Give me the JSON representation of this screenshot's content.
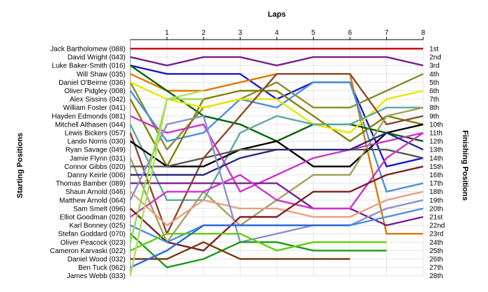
{
  "chart_data": {
    "type": "line",
    "title": "Laps",
    "y_left_label": "Starting Positions",
    "y_right_label": "Finishing Positions",
    "grid": true,
    "x_ticks": [
      "1",
      "2",
      "3",
      "4",
      "5",
      "6",
      "7",
      "8"
    ],
    "driver_labels": [
      "Jack Bartholomew (088)",
      "David Wright (043)",
      "Luke Baker-Smith (016)",
      "Will Shaw (035)",
      "Daniel O'Beirne (036)",
      "Oliver Pidgley (008)",
      "Alex Sissins (042)",
      "William Foster (041)",
      "Hayden Edmonds (081)",
      "Mitchell Althasen (044)",
      "Lewis Bickers (057)",
      "Lando Norris (030)",
      "Ryan Savage (049)",
      "Jamie Flynn (031)",
      "Connor Gibbs (020)",
      "Danny Keirle (006)",
      "Thomas Bamber (089)",
      "Shaun Arnold (046)",
      "Matthew Arnold (064)",
      "Sam Smelt (096)",
      "Elliot Goodman (028)",
      "Karl Bonney (025)",
      "Stefan Goddard (070)",
      "Oliver Peacock (023)",
      "Cameron Karvaski (022)",
      "Daniel Wood (032)",
      "Ben Tuck (062)",
      "James Webb (033)"
    ],
    "finish_labels": [
      "1st",
      "2nd",
      "3rd",
      "4th",
      "5th",
      "6th",
      "7th",
      "8th",
      "9th",
      "10th",
      "11th",
      "12th",
      "13th",
      "14th",
      "15th",
      "16th",
      "17th",
      "18th",
      "19th",
      "20th",
      "21st",
      "22nd",
      "23rd",
      "24th",
      "25th",
      "26th",
      "27th",
      "28th"
    ],
    "series": [
      {
        "color": "#cc0000",
        "positions": [
          1,
          1,
          1,
          1,
          1,
          1,
          1,
          1,
          1
        ]
      },
      {
        "color": "#7a1f8c",
        "positions": [
          2,
          3,
          2,
          2,
          3,
          2,
          2,
          2,
          3
        ]
      },
      {
        "color": "#1a1acc",
        "positions": [
          3,
          4,
          4,
          4,
          7,
          5,
          5,
          15,
          14
        ]
      },
      {
        "color": "#e07800",
        "positions": [
          4,
          6,
          6,
          5,
          4,
          4,
          4,
          23,
          23
        ]
      },
      {
        "color": "#8a8a2a",
        "positions": [
          5,
          13,
          8,
          7,
          5,
          8,
          8,
          6,
          4
        ]
      },
      {
        "color": "#4a90d9",
        "positions": [
          6,
          12,
          11,
          7,
          8,
          5,
          5,
          18,
          17
        ]
      },
      {
        "color": "#006400",
        "positions": [
          3,
          6,
          9,
          10,
          12,
          10,
          10,
          11,
          12
        ]
      },
      {
        "color": "#808000",
        "positions": [
          7,
          15,
          7,
          6,
          6,
          9,
          12,
          9,
          10
        ]
      },
      {
        "color": "#e8e800",
        "positions": [
          5,
          7,
          8,
          7,
          7,
          10,
          11,
          7,
          6
        ]
      },
      {
        "color": "#5fa8a0",
        "positions": [
          10,
          19,
          19,
          11,
          9,
          10,
          10,
          8,
          8
        ]
      },
      {
        "color": "#8a4a2a",
        "positions": [
          11,
          23,
          14,
          9,
          4,
          4,
          4,
          10,
          9
        ]
      },
      {
        "color": "#000000",
        "positions": [
          12,
          15,
          15,
          13,
          12,
          15,
          15,
          11,
          10
        ]
      },
      {
        "color": "#cc33cc",
        "positions": [
          9,
          11,
          10,
          18,
          16,
          14,
          13,
          12,
          11
        ]
      },
      {
        "color": "#a0a060",
        "positions": [
          14,
          24,
          18,
          22,
          19,
          16,
          16,
          9,
          8
        ]
      },
      {
        "color": "#555555",
        "positions": [
          15,
          15,
          14,
          13,
          13,
          13,
          13,
          13,
          14
        ]
      },
      {
        "color": "#2b2b80",
        "positions": [
          16,
          16,
          16,
          14,
          13,
          13,
          13,
          11,
          13
        ]
      },
      {
        "color": "#7a1f8c",
        "positions": [
          17,
          17,
          17,
          17,
          17,
          20,
          20,
          22,
          21
        ]
      },
      {
        "color": "#e8a080",
        "positions": [
          18,
          22,
          19,
          20,
          20,
          21,
          21,
          19,
          18
        ]
      },
      {
        "color": "#cc33cc",
        "positions": [
          21,
          18,
          18,
          16,
          19,
          20,
          20,
          14,
          11
        ]
      },
      {
        "color": "#7a1f1f",
        "positions": [
          20,
          24,
          25,
          21,
          21,
          18,
          18,
          16,
          15
        ]
      },
      {
        "color": "#8f8fcc",
        "positions": [
          19,
          10,
          9,
          24,
          23,
          22,
          22,
          20,
          19
        ]
      },
      {
        "color": "#4a90d9",
        "positions": [
          22,
          24,
          22,
          22,
          22,
          22,
          22,
          21,
          20
        ]
      },
      {
        "color": "#1a9a1a",
        "positions": [
          23,
          27,
          26,
          24,
          24,
          25,
          25,
          25,
          0
        ]
      },
      {
        "color": "#90e040",
        "positions": [
          24,
          7,
          7,
          0,
          0,
          0,
          0,
          0,
          0
        ]
      },
      {
        "color": "#66cc00",
        "positions": [
          25,
          23,
          23,
          23,
          25,
          24,
          24,
          24,
          0
        ]
      },
      {
        "color": "#7a3a10",
        "positions": [
          26,
          26,
          24,
          26,
          26,
          26,
          26,
          0,
          0
        ]
      },
      {
        "color": "#2a6ad9",
        "positions": [
          27,
          25,
          22,
          22,
          22,
          22,
          22,
          0,
          0
        ]
      },
      {
        "color": "#b0e060",
        "positions": [
          28,
          7,
          6,
          0,
          0,
          0,
          0,
          0,
          0
        ]
      }
    ]
  }
}
